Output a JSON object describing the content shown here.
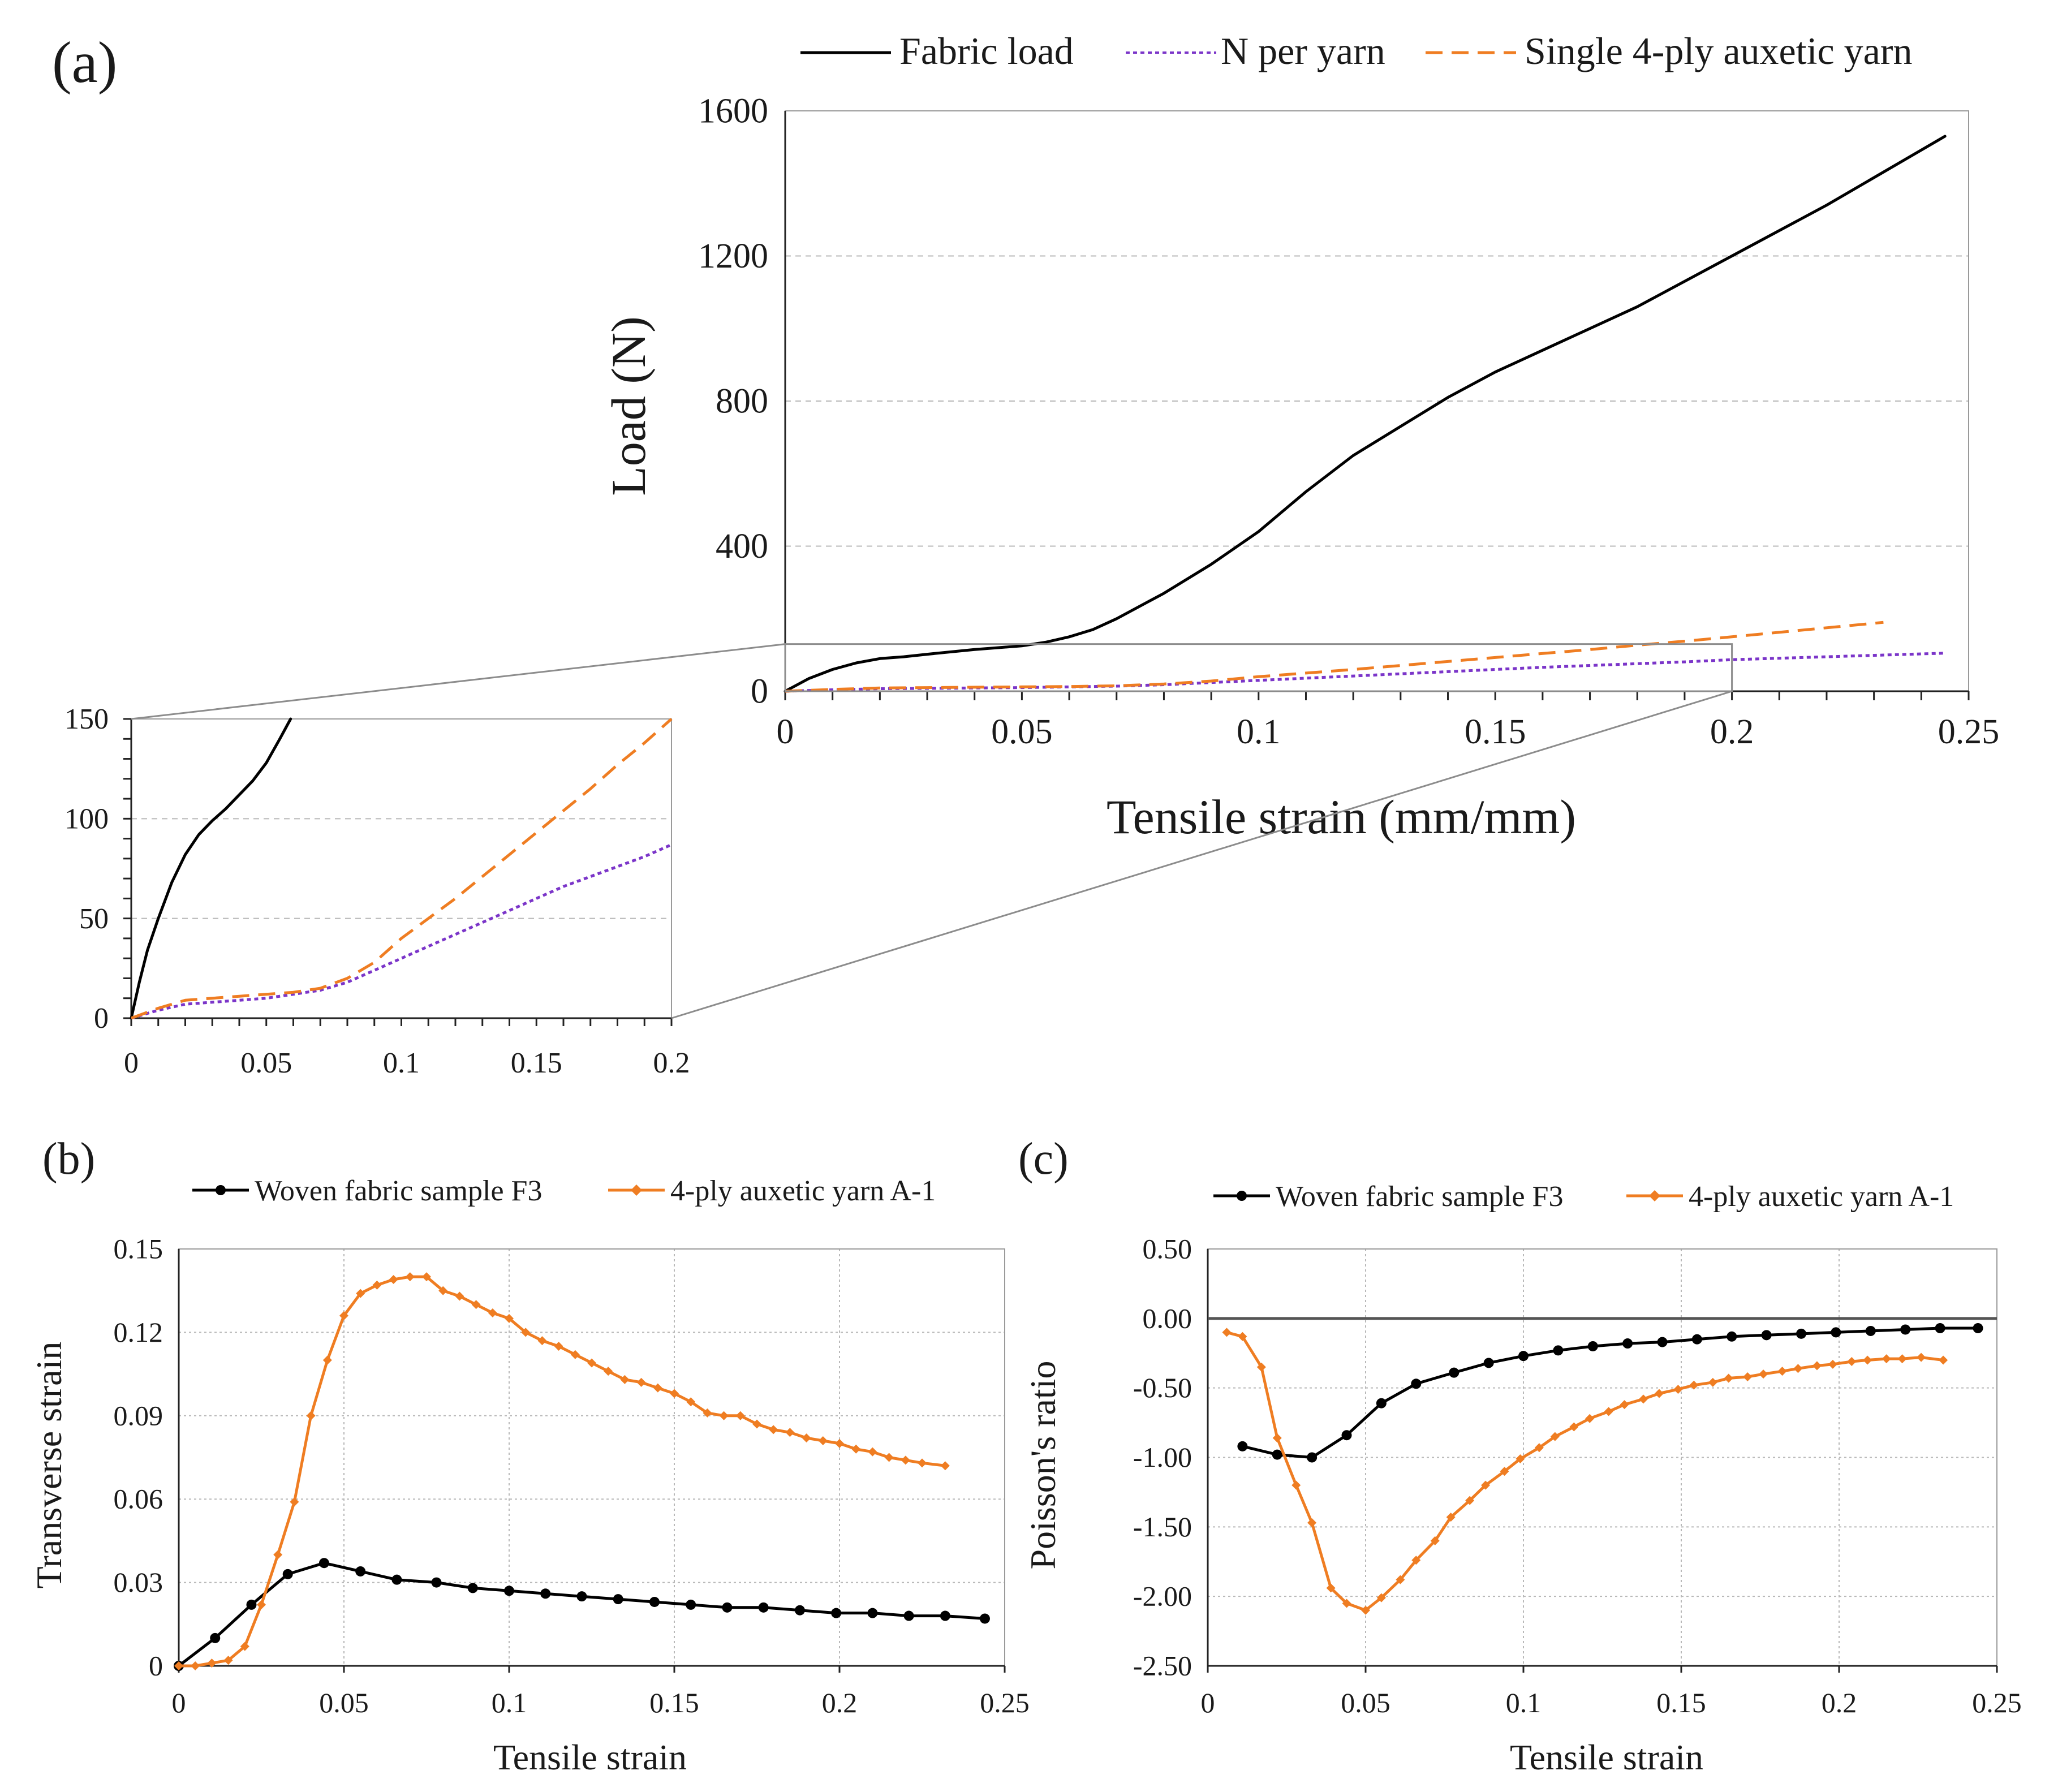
{
  "colors": {
    "fabric": "#000000",
    "n_per_yarn": "#7b35c9",
    "single_yarn": "#ef7d22",
    "grid": "#b8b8b8",
    "frame": "#9a9a9a"
  },
  "chart_data": [
    {
      "id": "a",
      "panel_label": "(a)",
      "type": "line",
      "xlabel": "Tensile strain (mm/mm)",
      "ylabel": "Load (N)",
      "xlim": [
        0,
        0.25
      ],
      "ylim": [
        0,
        1600
      ],
      "xticks": [
        0,
        0.05,
        0.1,
        0.15,
        0.2,
        0.25
      ],
      "xtick_labels": [
        "0",
        "0.05",
        "0.1",
        "0.15",
        "0.2",
        "0.25"
      ],
      "yticks": [
        0,
        400,
        800,
        1200,
        1600
      ],
      "ytick_labels": [
        "0",
        "400",
        "800",
        "1200",
        "1600"
      ],
      "grid": "horizontal-dashed",
      "legend_position": "top",
      "series": [
        {
          "name": "Fabric load",
          "style": "solid",
          "color": "#000000",
          "x": [
            0,
            0.005,
            0.01,
            0.015,
            0.02,
            0.025,
            0.03,
            0.04,
            0.05,
            0.055,
            0.06,
            0.065,
            0.07,
            0.075,
            0.08,
            0.09,
            0.1,
            0.11,
            0.12,
            0.13,
            0.14,
            0.15,
            0.16,
            0.18,
            0.2,
            0.22,
            0.245
          ],
          "y": [
            0,
            35,
            60,
            78,
            90,
            95,
            102,
            115,
            125,
            135,
            150,
            170,
            200,
            235,
            270,
            350,
            440,
            550,
            650,
            730,
            810,
            880,
            940,
            1060,
            1200,
            1340,
            1530
          ]
        },
        {
          "name": "N per yarn",
          "style": "dotted",
          "color": "#7b35c9",
          "x": [
            0,
            0.01,
            0.02,
            0.03,
            0.04,
            0.05,
            0.06,
            0.07,
            0.08,
            0.09,
            0.1,
            0.11,
            0.12,
            0.13,
            0.14,
            0.15,
            0.16,
            0.17,
            0.18,
            0.19,
            0.2,
            0.245
          ],
          "y": [
            0,
            4,
            7,
            8,
            9,
            10,
            12,
            14,
            18,
            24,
            30,
            36,
            42,
            48,
            54,
            60,
            66,
            71,
            76,
            81,
            87,
            105
          ]
        },
        {
          "name": "Single 4-ply auxetic yarn",
          "style": "dashed",
          "color": "#ef7d22",
          "x": [
            0,
            0.01,
            0.02,
            0.03,
            0.04,
            0.05,
            0.06,
            0.07,
            0.08,
            0.09,
            0.1,
            0.11,
            0.12,
            0.13,
            0.14,
            0.15,
            0.16,
            0.17,
            0.18,
            0.19,
            0.2,
            0.232
          ],
          "y": [
            0,
            5,
            9,
            10,
            11,
            12,
            13,
            15,
            20,
            28,
            40,
            50,
            60,
            71,
            82,
            93,
            104,
            115,
            127,
            138,
            150,
            190
          ]
        }
      ]
    },
    {
      "id": "a_inset",
      "type": "line",
      "xlim": [
        0,
        0.2
      ],
      "ylim": [
        0,
        150
      ],
      "xticks": [
        0,
        0.05,
        0.1,
        0.15,
        0.2
      ],
      "xtick_labels": [
        "0",
        "0.05",
        "0.1",
        "0.15",
        "0.2"
      ],
      "yticks": [
        0,
        50,
        100,
        150
      ],
      "ytick_labels": [
        "0",
        "50",
        "100",
        "150"
      ],
      "grid": "horizontal-dashed",
      "zoom_of": "a",
      "zoom_region": {
        "x": [
          0,
          0.2
        ],
        "y": [
          0,
          130
        ]
      },
      "series": [
        {
          "name": "Fabric load",
          "style": "solid",
          "color": "#000000",
          "x": [
            0,
            0.003,
            0.006,
            0.01,
            0.015,
            0.02,
            0.025,
            0.03,
            0.035,
            0.04,
            0.045,
            0.05,
            0.055,
            0.059
          ],
          "y": [
            0,
            18,
            34,
            50,
            68,
            82,
            92,
            99,
            105,
            112,
            119,
            128,
            140,
            150
          ]
        },
        {
          "name": "N per yarn",
          "style": "dotted",
          "color": "#7b35c9",
          "x": [
            0,
            0.01,
            0.02,
            0.03,
            0.04,
            0.05,
            0.06,
            0.07,
            0.08,
            0.09,
            0.1,
            0.11,
            0.12,
            0.13,
            0.14,
            0.15,
            0.16,
            0.17,
            0.18,
            0.19,
            0.2
          ],
          "y": [
            0,
            4,
            7,
            8,
            9,
            10,
            12,
            14,
            18,
            24,
            30,
            36,
            42,
            48,
            54,
            60,
            66,
            71,
            76,
            81,
            87
          ]
        },
        {
          "name": "Single 4-ply auxetic yarn",
          "style": "dashed",
          "color": "#ef7d22",
          "x": [
            0,
            0.01,
            0.02,
            0.03,
            0.04,
            0.05,
            0.06,
            0.07,
            0.08,
            0.09,
            0.1,
            0.11,
            0.12,
            0.13,
            0.14,
            0.15,
            0.16,
            0.17,
            0.18,
            0.19,
            0.2
          ],
          "y": [
            0,
            5,
            9,
            10,
            11,
            12,
            13,
            15,
            20,
            28,
            40,
            50,
            60,
            71,
            82,
            93,
            104,
            115,
            127,
            138,
            150
          ]
        }
      ]
    },
    {
      "id": "b",
      "panel_label": "(b)",
      "type": "line",
      "xlabel": "Tensile strain",
      "ylabel": "Transverse strain",
      "xlim": [
        0,
        0.25
      ],
      "ylim": [
        0,
        0.15
      ],
      "xticks": [
        0,
        0.05,
        0.1,
        0.15,
        0.2,
        0.25
      ],
      "xtick_labels": [
        "0",
        "0.05",
        "0.1",
        "0.15",
        "0.2",
        "0.25"
      ],
      "yticks": [
        0,
        0.03,
        0.06,
        0.09,
        0.12,
        0.15
      ],
      "ytick_labels": [
        "0",
        "0.03",
        "0.06",
        "0.09",
        "0.12",
        "0.15"
      ],
      "grid": "both-dotted",
      "legend_position": "top",
      "series": [
        {
          "name": "Woven fabric sample F3",
          "color": "#000000",
          "marker": "circle",
          "x": [
            0,
            0.011,
            0.022,
            0.033,
            0.044,
            0.055,
            0.066,
            0.078,
            0.089,
            0.1,
            0.111,
            0.122,
            0.133,
            0.144,
            0.155,
            0.166,
            0.177,
            0.188,
            0.199,
            0.21,
            0.221,
            0.232,
            0.244
          ],
          "y": [
            0,
            0.01,
            0.022,
            0.033,
            0.037,
            0.034,
            0.031,
            0.03,
            0.028,
            0.027,
            0.026,
            0.025,
            0.024,
            0.023,
            0.022,
            0.021,
            0.021,
            0.02,
            0.019,
            0.019,
            0.018,
            0.018,
            0.017
          ]
        },
        {
          "name": "4-ply auxetic yarn A-1",
          "color": "#ef7d22",
          "marker": "diamond",
          "x": [
            0,
            0.005,
            0.01,
            0.015,
            0.02,
            0.025,
            0.03,
            0.035,
            0.04,
            0.045,
            0.05,
            0.055,
            0.06,
            0.065,
            0.07,
            0.075,
            0.08,
            0.085,
            0.09,
            0.095,
            0.1,
            0.105,
            0.11,
            0.115,
            0.12,
            0.125,
            0.13,
            0.135,
            0.14,
            0.145,
            0.15,
            0.155,
            0.16,
            0.165,
            0.17,
            0.175,
            0.18,
            0.185,
            0.19,
            0.195,
            0.2,
            0.205,
            0.21,
            0.215,
            0.22,
            0.225,
            0.232
          ],
          "y": [
            0,
            0,
            0.001,
            0.002,
            0.007,
            0.022,
            0.04,
            0.059,
            0.09,
            0.11,
            0.126,
            0.134,
            0.137,
            0.139,
            0.14,
            0.14,
            0.135,
            0.133,
            0.13,
            0.127,
            0.125,
            0.12,
            0.117,
            0.115,
            0.112,
            0.109,
            0.106,
            0.103,
            0.102,
            0.1,
            0.098,
            0.095,
            0.091,
            0.09,
            0.09,
            0.087,
            0.085,
            0.084,
            0.082,
            0.081,
            0.08,
            0.078,
            0.077,
            0.075,
            0.074,
            0.073,
            0.072
          ]
        }
      ]
    },
    {
      "id": "c",
      "panel_label": "(c)",
      "type": "line",
      "xlabel": "Tensile strain",
      "ylabel": "Poisson's ratio",
      "xlim": [
        0,
        0.25
      ],
      "ylim": [
        -2.5,
        0.5
      ],
      "xticks": [
        0,
        0.05,
        0.1,
        0.15,
        0.2,
        0.25
      ],
      "xtick_labels": [
        "0",
        "0.05",
        "0.1",
        "0.15",
        "0.2",
        "0.25"
      ],
      "yticks": [
        -2.5,
        -2.0,
        -1.5,
        -1.0,
        -0.5,
        0.0,
        0.5
      ],
      "ytick_labels": [
        "-2.50",
        "-2.00",
        "-1.50",
        "-1.00",
        "-0.50",
        "0.00",
        "0.50"
      ],
      "grid": "both-dotted",
      "zero_line": true,
      "legend_position": "top",
      "series": [
        {
          "name": "Woven fabric sample F3",
          "color": "#000000",
          "marker": "circle",
          "x": [
            0.011,
            0.022,
            0.033,
            0.044,
            0.055,
            0.066,
            0.078,
            0.089,
            0.1,
            0.111,
            0.122,
            0.133,
            0.144,
            0.155,
            0.166,
            0.177,
            0.188,
            0.199,
            0.21,
            0.221,
            0.232,
            0.244
          ],
          "y": [
            -0.92,
            -0.98,
            -1.0,
            -0.84,
            -0.61,
            -0.47,
            -0.39,
            -0.32,
            -0.27,
            -0.23,
            -0.2,
            -0.18,
            -0.17,
            -0.15,
            -0.13,
            -0.12,
            -0.11,
            -0.1,
            -0.09,
            -0.08,
            -0.07,
            -0.07
          ]
        },
        {
          "name": "4-ply auxetic yarn A-1",
          "color": "#ef7d22",
          "marker": "diamond",
          "x": [
            0.006,
            0.011,
            0.017,
            0.022,
            0.028,
            0.033,
            0.039,
            0.044,
            0.05,
            0.055,
            0.061,
            0.066,
            0.072,
            0.077,
            0.083,
            0.088,
            0.094,
            0.099,
            0.105,
            0.11,
            0.116,
            0.121,
            0.127,
            0.132,
            0.138,
            0.143,
            0.149,
            0.154,
            0.16,
            0.165,
            0.171,
            0.176,
            0.182,
            0.187,
            0.193,
            0.198,
            0.204,
            0.209,
            0.215,
            0.22,
            0.226,
            0.233
          ],
          "y": [
            -0.1,
            -0.13,
            -0.35,
            -0.86,
            -1.2,
            -1.47,
            -1.94,
            -2.05,
            -2.1,
            -2.01,
            -1.88,
            -1.74,
            -1.6,
            -1.43,
            -1.31,
            -1.2,
            -1.1,
            -1.01,
            -0.93,
            -0.85,
            -0.78,
            -0.72,
            -0.67,
            -0.62,
            -0.58,
            -0.54,
            -0.51,
            -0.48,
            -0.46,
            -0.43,
            -0.42,
            -0.4,
            -0.38,
            -0.36,
            -0.34,
            -0.33,
            -0.31,
            -0.3,
            -0.29,
            -0.29,
            -0.28,
            -0.3
          ]
        }
      ]
    }
  ]
}
